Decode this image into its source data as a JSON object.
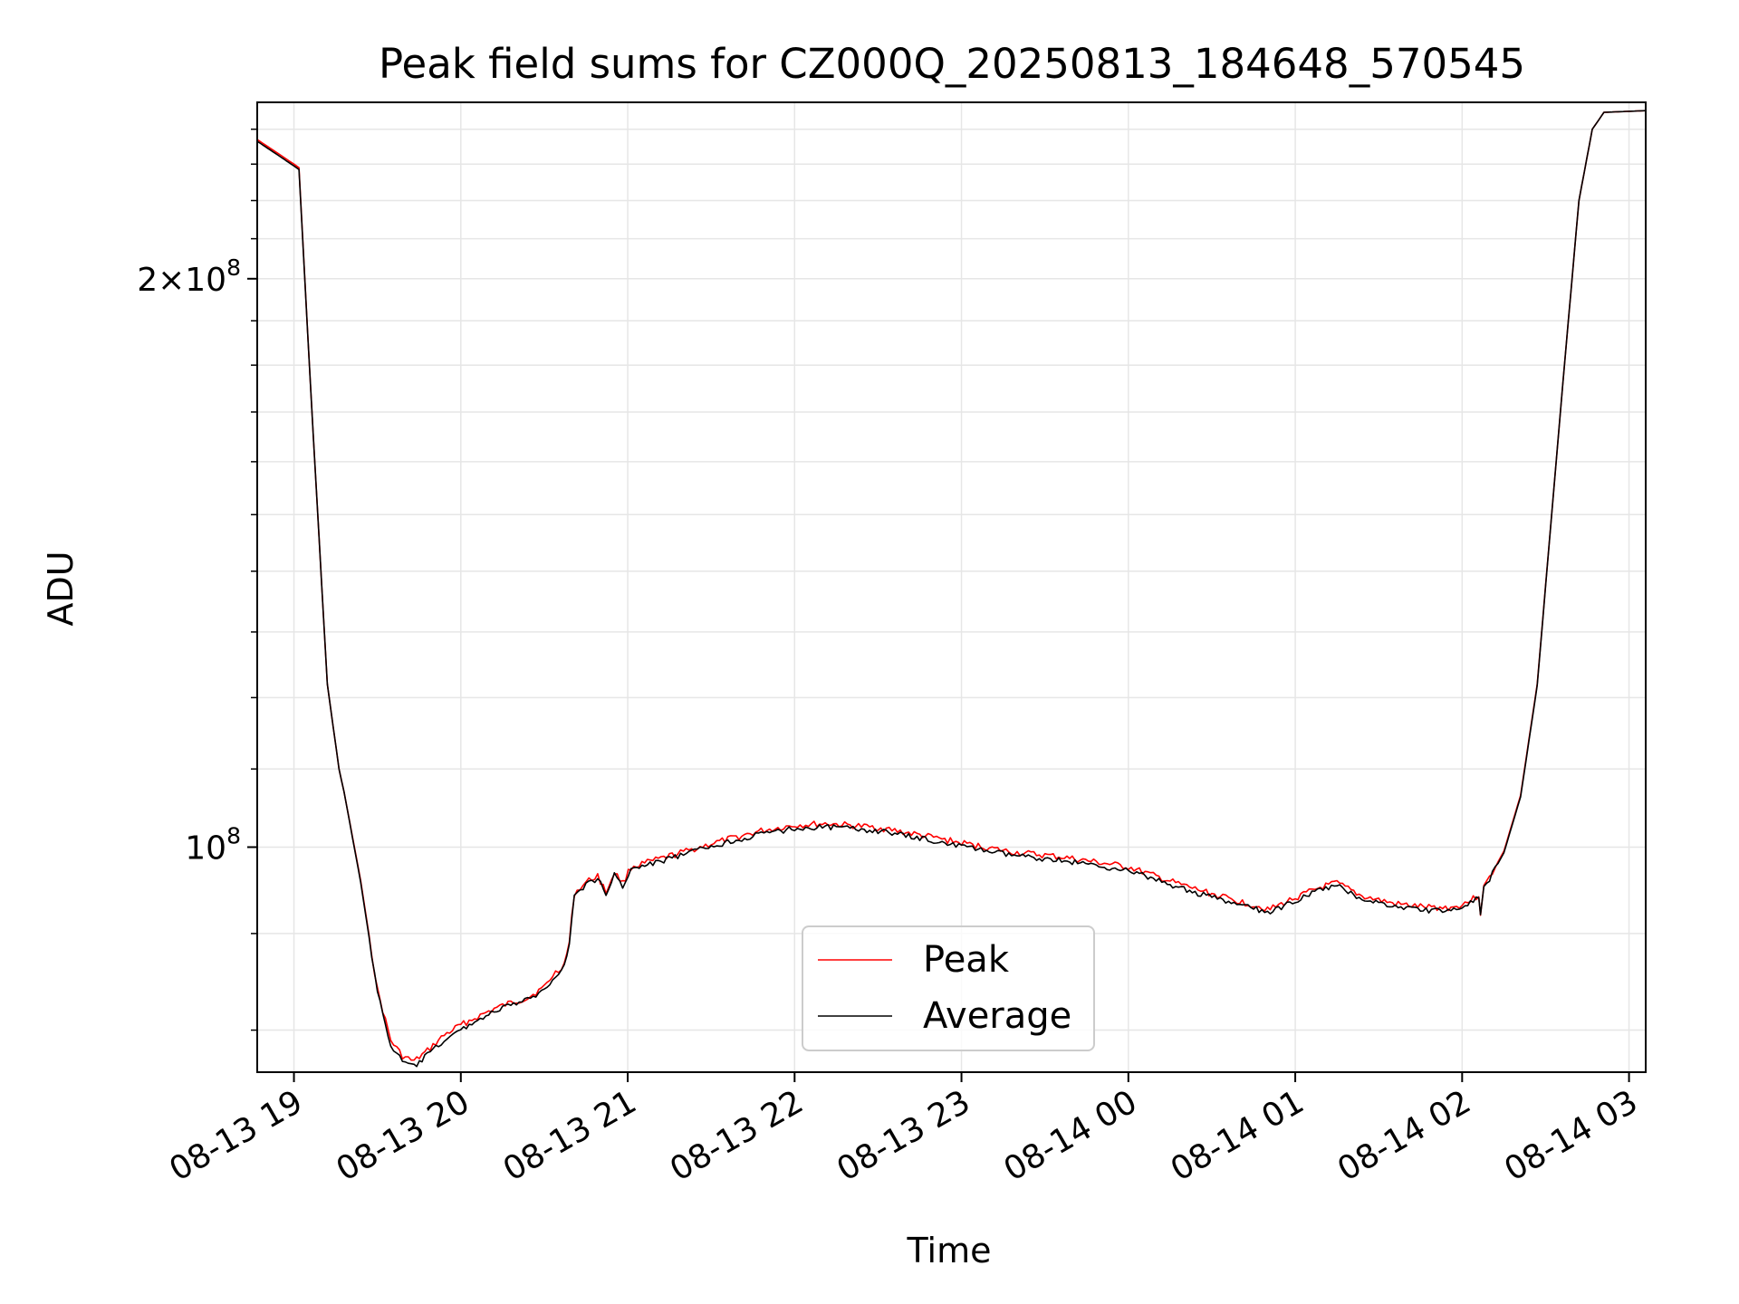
{
  "chart_data": {
    "type": "line",
    "title": "Peak field sums for CZ000Q_20250813_184648_570545",
    "xlabel": "Time",
    "ylabel": "ADU",
    "yscale": "log",
    "grid": true,
    "legend_position": "lower center",
    "x_ticks": [
      "08-13 19",
      "08-13 20",
      "08-13 21",
      "08-13 22",
      "08-13 23",
      "08-14 00",
      "08-14 01",
      "08-14 02",
      "08-14 03"
    ],
    "y_major_ticks": [
      {
        "value": 100000000,
        "mantissa": "",
        "base": "10",
        "exp": "8"
      },
      {
        "value": 200000000,
        "mantissa": "2×",
        "base": "10",
        "exp": "8"
      }
    ],
    "x_unit": "hours since 08-13 19:00",
    "xlim": [
      -0.22,
      8.1
    ],
    "ylim": [
      76000000,
      248000000
    ],
    "series": [
      {
        "name": "Peak",
        "color": "#ff0000",
        "points": [
          [
            -0.22,
            237000000
          ],
          [
            0.0,
            230000000
          ],
          [
            0.03,
            229000000
          ],
          [
            0.1,
            175000000
          ],
          [
            0.2,
            122000000
          ],
          [
            0.27,
            110000000
          ],
          [
            0.3,
            107000000
          ],
          [
            0.4,
            96000000
          ],
          [
            0.5,
            84000000
          ],
          [
            0.58,
            79000000
          ],
          [
            0.65,
            77500000
          ],
          [
            0.72,
            77000000
          ],
          [
            0.8,
            78000000
          ],
          [
            0.9,
            79500000
          ],
          [
            1.0,
            80500000
          ],
          [
            1.1,
            81300000
          ],
          [
            1.2,
            82100000
          ],
          [
            1.3,
            82700000
          ],
          [
            1.4,
            83200000
          ],
          [
            1.5,
            84300000
          ],
          [
            1.55,
            85500000
          ],
          [
            1.62,
            86700000
          ],
          [
            1.65,
            89000000
          ],
          [
            1.68,
            94500000
          ],
          [
            1.75,
            95800000
          ],
          [
            1.82,
            96600000
          ],
          [
            1.87,
            94600000
          ],
          [
            1.92,
            97000000
          ],
          [
            1.97,
            95700000
          ],
          [
            2.02,
            97600000
          ],
          [
            2.2,
            98600000
          ],
          [
            2.5,
            100400000
          ],
          [
            2.8,
            102000000
          ],
          [
            3.0,
            102700000
          ],
          [
            3.2,
            102900000
          ],
          [
            3.5,
            102400000
          ],
          [
            3.8,
            101300000
          ],
          [
            4.0,
            100500000
          ],
          [
            4.3,
            99400000
          ],
          [
            4.6,
            98800000
          ],
          [
            5.0,
            97600000
          ],
          [
            5.3,
            95600000
          ],
          [
            5.6,
            93900000
          ],
          [
            5.85,
            92700000
          ],
          [
            6.0,
            94000000
          ],
          [
            6.15,
            95200000
          ],
          [
            6.25,
            95700000
          ],
          [
            6.4,
            94200000
          ],
          [
            6.6,
            93300000
          ],
          [
            6.8,
            92900000
          ],
          [
            6.95,
            92900000
          ],
          [
            7.05,
            93700000
          ],
          [
            7.1,
            94300000
          ],
          [
            7.11,
            92300000
          ],
          [
            7.13,
            95200000
          ],
          [
            7.25,
            99500000
          ],
          [
            7.35,
            106500000
          ],
          [
            7.45,
            122000000
          ],
          [
            7.55,
            155000000
          ],
          [
            7.62,
            183000000
          ],
          [
            7.7,
            220000000
          ],
          [
            7.78,
            240000000
          ],
          [
            7.85,
            245000000
          ],
          [
            8.1,
            245500000
          ]
        ]
      },
      {
        "name": "Average",
        "color": "#000000",
        "points": [
          [
            -0.22,
            236500000
          ],
          [
            0.0,
            229500000
          ],
          [
            0.03,
            228500000
          ],
          [
            0.1,
            175000000
          ],
          [
            0.2,
            122000000
          ],
          [
            0.27,
            110000000
          ],
          [
            0.3,
            107000000
          ],
          [
            0.4,
            95800000
          ],
          [
            0.5,
            83800000
          ],
          [
            0.58,
            78500000
          ],
          [
            0.65,
            77000000
          ],
          [
            0.72,
            76500000
          ],
          [
            0.8,
            77600000
          ],
          [
            0.9,
            79000000
          ],
          [
            1.0,
            80000000
          ],
          [
            1.1,
            81000000
          ],
          [
            1.2,
            81800000
          ],
          [
            1.3,
            82500000
          ],
          [
            1.4,
            83000000
          ],
          [
            1.5,
            84000000
          ],
          [
            1.55,
            85200000
          ],
          [
            1.62,
            86500000
          ],
          [
            1.65,
            88800000
          ],
          [
            1.68,
            94300000
          ],
          [
            1.75,
            95500000
          ],
          [
            1.82,
            96300000
          ],
          [
            1.87,
            94300000
          ],
          [
            1.92,
            96700000
          ],
          [
            1.97,
            95400000
          ],
          [
            2.02,
            97300000
          ],
          [
            2.2,
            98300000
          ],
          [
            2.5,
            100100000
          ],
          [
            2.8,
            101600000
          ],
          [
            3.0,
            102300000
          ],
          [
            3.2,
            102500000
          ],
          [
            3.5,
            102000000
          ],
          [
            3.8,
            100900000
          ],
          [
            4.0,
            100100000
          ],
          [
            4.3,
            99000000
          ],
          [
            4.6,
            98400000
          ],
          [
            5.0,
            97200000
          ],
          [
            5.3,
            95200000
          ],
          [
            5.6,
            93500000
          ],
          [
            5.85,
            92300000
          ],
          [
            6.0,
            93700000
          ],
          [
            6.15,
            94900000
          ],
          [
            6.25,
            95400000
          ],
          [
            6.4,
            93900000
          ],
          [
            6.6,
            93000000
          ],
          [
            6.8,
            92600000
          ],
          [
            6.95,
            92600000
          ],
          [
            7.05,
            93400000
          ],
          [
            7.1,
            94000000
          ],
          [
            7.11,
            92000000
          ],
          [
            7.13,
            95000000
          ],
          [
            7.25,
            99300000
          ],
          [
            7.35,
            106300000
          ],
          [
            7.45,
            121800000
          ],
          [
            7.55,
            155000000
          ],
          [
            7.62,
            183000000
          ],
          [
            7.7,
            220000000
          ],
          [
            7.78,
            240000000
          ],
          [
            7.85,
            245000000
          ],
          [
            8.1,
            245500000
          ]
        ]
      }
    ]
  }
}
